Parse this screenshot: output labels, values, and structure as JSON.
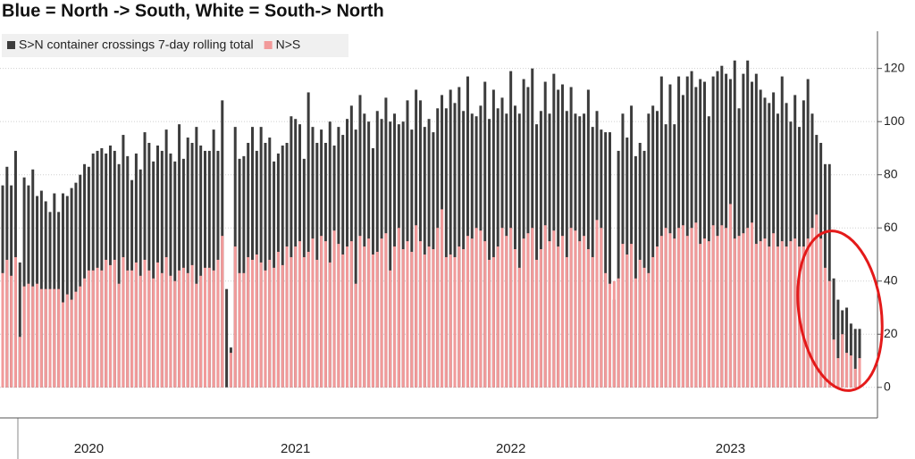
{
  "chart_data": {
    "type": "bar",
    "title": "Blue = North -> South, White =  South-> North",
    "categories": [
      null,
      null,
      null,
      null,
      null,
      null,
      null,
      null,
      null,
      null,
      null,
      null,
      null,
      null,
      null,
      null,
      null,
      null,
      null,
      null,
      null,
      null,
      null,
      null,
      null,
      null,
      null,
      null,
      null,
      null,
      null,
      null,
      null,
      null,
      null,
      null,
      null,
      null,
      null,
      null,
      null,
      null,
      null,
      null,
      null,
      null,
      null,
      null,
      null,
      null,
      null,
      null,
      null,
      null,
      null,
      null,
      null,
      null,
      null,
      null,
      null,
      null,
      null,
      null,
      null,
      null,
      null,
      null,
      null,
      null,
      null,
      null,
      null,
      null,
      null,
      null,
      null,
      null,
      null,
      null,
      null,
      null,
      null,
      null,
      null,
      null,
      null,
      null,
      null,
      null,
      null,
      null,
      null,
      null,
      null,
      null,
      null,
      null,
      null,
      null,
      null,
      null,
      null,
      null,
      null,
      null,
      null,
      null,
      null,
      null,
      null,
      null,
      null,
      null,
      null,
      null,
      null,
      null,
      null,
      null,
      null,
      null,
      null,
      null,
      null,
      null,
      null,
      null,
      null,
      null,
      null,
      null,
      null,
      null,
      null,
      null,
      null,
      null,
      null,
      null,
      null,
      null,
      null,
      null,
      null,
      null,
      null,
      null,
      null,
      null,
      null,
      null,
      null,
      null,
      null,
      null,
      null,
      null,
      null,
      null,
      null,
      null,
      null,
      null,
      null,
      null,
      null,
      null,
      null,
      null,
      null,
      null,
      null,
      null,
      null,
      null,
      null,
      null,
      null,
      null,
      null,
      null,
      null,
      null,
      null,
      null,
      null,
      null,
      null,
      null,
      null,
      null,
      null,
      null,
      null,
      null,
      null,
      null,
      null,
      null
    ],
    "xticks": [
      {
        "value": 20,
        "label": "2020"
      },
      {
        "value": 68,
        "label": "2021"
      },
      {
        "value": 118,
        "label": "2022"
      },
      {
        "value": 169,
        "label": "2023"
      }
    ],
    "series": [
      {
        "name": "S>N container crossings 7-day rolling total",
        "color": "#3c3c3c",
        "values": [
          76,
          83,
          76,
          89,
          47,
          79,
          76,
          82,
          72,
          74,
          70,
          66,
          73,
          66,
          73,
          72,
          75,
          77,
          80,
          84,
          83,
          88,
          89,
          90,
          88,
          91,
          89,
          84,
          95,
          87,
          78,
          88,
          82,
          96,
          92,
          85,
          91,
          89,
          97,
          88,
          85,
          99,
          86,
          94,
          92,
          98,
          91,
          89,
          89,
          97,
          89,
          108,
          37,
          15,
          98,
          86,
          87,
          92,
          98,
          89,
          98,
          92,
          94,
          85,
          88,
          91,
          92,
          102,
          101,
          99,
          86,
          111,
          98,
          92,
          97,
          92,
          100,
          91,
          98,
          95,
          101,
          106,
          97,
          110,
          103,
          100,
          90,
          104,
          101,
          109,
          100,
          103,
          99,
          100,
          108,
          97,
          112,
          108,
          98,
          101,
          96,
          105,
          110,
          105,
          112,
          107,
          113,
          104,
          117,
          103,
          102,
          106,
          115,
          101,
          112,
          105,
          109,
          103,
          119,
          106,
          103,
          116,
          113,
          120,
          99,
          104,
          115,
          103,
          118,
          112,
          114,
          104,
          113,
          103,
          102,
          103,
          112,
          98,
          104,
          97,
          96,
          96,
          33,
          89,
          103,
          94,
          106,
          87,
          92,
          89,
          103,
          106,
          104,
          117,
          99,
          114,
          99,
          117,
          110,
          117,
          119,
          113,
          116,
          115,
          102,
          117,
          119,
          121,
          118,
          116,
          123,
          105,
          118,
          123,
          115,
          118,
          112,
          109,
          107,
          111,
          103,
          117,
          107,
          100,
          110,
          98,
          108,
          116,
          103,
          95,
          92,
          84,
          84,
          41,
          33,
          29,
          30,
          24,
          22,
          22
        ]
      },
      {
        "name": "N>S",
        "color": "#f29a9a",
        "values": [
          43,
          48,
          42,
          49,
          19,
          38,
          39,
          38,
          39,
          37,
          37,
          37,
          37,
          37,
          32,
          35,
          33,
          36,
          38,
          41,
          44,
          44,
          45,
          44,
          48,
          46,
          48,
          39,
          49,
          44,
          44,
          47,
          42,
          48,
          44,
          41,
          47,
          43,
          49,
          42,
          40,
          44,
          45,
          43,
          46,
          39,
          42,
          45,
          45,
          44,
          48,
          57,
          0,
          13,
          53,
          43,
          43,
          49,
          48,
          50,
          47,
          44,
          48,
          45,
          51,
          46,
          53,
          49,
          53,
          55,
          49,
          51,
          56,
          48,
          57,
          55,
          47,
          59,
          54,
          50,
          53,
          55,
          39,
          57,
          53,
          56,
          50,
          51,
          56,
          58,
          44,
          53,
          60,
          52,
          55,
          51,
          61,
          55,
          50,
          53,
          52,
          60,
          67,
          49,
          50,
          49,
          53,
          52,
          57,
          56,
          60,
          59,
          55,
          48,
          49,
          53,
          60,
          57,
          60,
          52,
          45,
          56,
          58,
          60,
          48,
          52,
          61,
          55,
          59,
          53,
          57,
          49,
          60,
          59,
          55,
          57,
          52,
          49,
          63,
          60,
          43,
          39,
          40,
          41,
          54,
          50,
          54,
          41,
          48,
          45,
          43,
          49,
          53,
          57,
          60,
          58,
          56,
          60,
          61,
          57,
          60,
          62,
          54,
          56,
          55,
          61,
          57,
          61,
          60,
          69,
          56,
          57,
          58,
          60,
          62,
          54,
          55,
          56,
          53,
          58,
          53,
          55,
          53,
          55,
          56,
          53,
          53,
          56,
          60,
          65,
          56,
          45,
          40,
          18,
          11,
          20,
          13,
          12,
          7,
          11
        ]
      }
    ],
    "ylim": [
      -11.5,
      134
    ],
    "yticks": [
      0,
      20,
      40,
      60,
      80,
      100,
      120
    ],
    "grid": true
  }
}
